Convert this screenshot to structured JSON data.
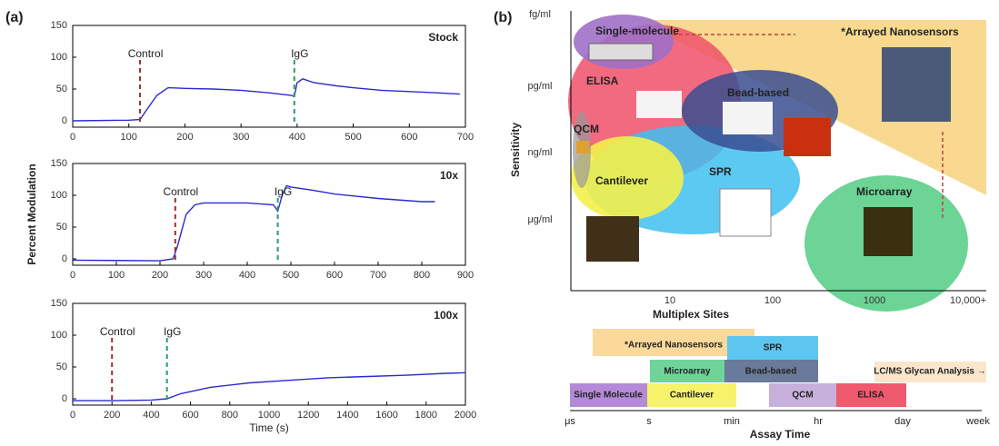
{
  "panel_labels": [
    "(a)",
    "(b)"
  ],
  "chart_data": [
    {
      "type": "line",
      "label": "Stock",
      "x": [
        0,
        100,
        120,
        130,
        150,
        170,
        200,
        250,
        300,
        350,
        390,
        395,
        400,
        410,
        430,
        470,
        500,
        550,
        600,
        650,
        690
      ],
      "series": [
        {
          "color": "#2a2ad0",
          "values": [
            0,
            1,
            2,
            15,
            40,
            52,
            51,
            50,
            48,
            44,
            40,
            38,
            60,
            66,
            60,
            55,
            52,
            48,
            46,
            44,
            42
          ]
        }
      ],
      "xlim": [
        0,
        700
      ],
      "ylim": [
        -10,
        150
      ],
      "xticks": [
        0,
        100,
        200,
        300,
        400,
        500,
        600,
        700
      ],
      "yticks": [
        0,
        50,
        100,
        150
      ],
      "markers": [
        {
          "label": "Control",
          "x": 120,
          "color": "#a0302a"
        },
        {
          "label": "IgG",
          "x": 395,
          "color": "#2a9a6a"
        }
      ]
    },
    {
      "type": "line",
      "label": "10x",
      "ylabel": "Percent Modulation",
      "x": [
        0,
        200,
        230,
        240,
        260,
        280,
        300,
        400,
        460,
        470,
        480,
        490,
        500,
        550,
        600,
        700,
        800,
        830
      ],
      "series": [
        {
          "color": "#2a2ad0",
          "values": [
            -2,
            -3,
            0,
            20,
            70,
            85,
            88,
            88,
            85,
            75,
            100,
            115,
            113,
            108,
            102,
            95,
            90,
            90
          ]
        }
      ],
      "xlim": [
        0,
        900
      ],
      "ylim": [
        -10,
        150
      ],
      "xticks": [
        0,
        100,
        200,
        300,
        400,
        500,
        600,
        700,
        800,
        900
      ],
      "yticks": [
        0,
        50,
        100,
        150
      ],
      "markers": [
        {
          "label": "Control",
          "x": 235,
          "color": "#a0302a"
        },
        {
          "label": "IgG",
          "x": 470,
          "color": "#2a9a6a"
        }
      ]
    },
    {
      "type": "line",
      "label": "100x",
      "xlabel": "Time (s)",
      "x": [
        0,
        200,
        400,
        480,
        550,
        700,
        900,
        1100,
        1300,
        1500,
        1700,
        1900,
        2000
      ],
      "series": [
        {
          "color": "#2a2ad0",
          "values": [
            -3,
            -3,
            -2,
            0,
            8,
            18,
            25,
            29,
            33,
            35,
            37,
            40,
            41
          ]
        }
      ],
      "xlim": [
        0,
        2000
      ],
      "ylim": [
        -10,
        150
      ],
      "xticks": [
        0,
        200,
        400,
        600,
        800,
        1000,
        1200,
        1400,
        1600,
        1800,
        2000
      ],
      "yticks": [
        0,
        50,
        100,
        150
      ],
      "markers": [
        {
          "label": "Control",
          "x": 200,
          "color": "#a0302a"
        },
        {
          "label": "IgG",
          "x": 480,
          "color": "#2a9a6a"
        }
      ]
    }
  ],
  "diagram": {
    "y_title": "Sensitivity",
    "x_title": "Multiplex Sites",
    "y_labels": [
      "fg/ml",
      "pg/ml",
      "ng/ml",
      "μg/ml"
    ],
    "x_labels": [
      "10",
      "100",
      "1000",
      "10,000+"
    ],
    "banner": "*Arrayed Nanosensors",
    "regions": [
      "Single-molecule",
      "ELISA",
      "Bead-based",
      "QCM",
      "SPR",
      "Cantilever",
      "Microarray"
    ]
  },
  "timeline": {
    "title": "Assay Time",
    "ticks": [
      "μs",
      "s",
      "min",
      "hr",
      "day",
      "week"
    ],
    "bars": [
      "*Arrayed Nanosensors",
      "SPR",
      "Microarray",
      "Bead-based",
      "LC/MS Glycan Analysis →",
      "Single Molecule",
      "Cantilever",
      "QCM",
      "ELISA"
    ]
  }
}
